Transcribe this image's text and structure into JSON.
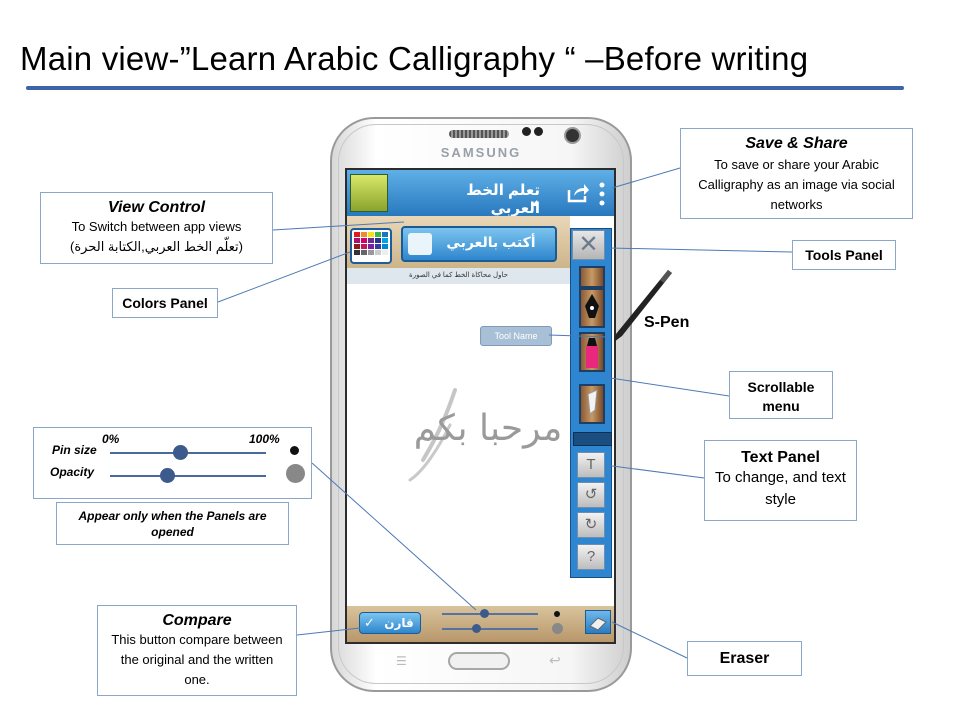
{
  "slide_title": "Main view-”Learn Arabic Calligraphy “ –Before writing",
  "phone": {
    "brand": "SAMSUNG",
    "app_title": "تعلم الخط العربي",
    "write_button": "أكتب بالعربي",
    "hint_text": "حاول محاكاة الخط كما في الصورة",
    "canvas_sample": "مرحبا بكم",
    "tool_name_label": "Tool Name",
    "compare_button": "قارن",
    "text_tool_glyph": "T",
    "undo_glyph": "↺",
    "redo_glyph": "↻",
    "help_glyph": "?"
  },
  "callouts": {
    "save_share": {
      "heading": "Save & Share",
      "body": "To  save or share your Arabic Calligraphy  as an image via social networks"
    },
    "view_control": {
      "heading": "View Control",
      "body": "To Switch between app views",
      "body2": "(تعلّم الخط العربي,الكتابة الحرة)"
    },
    "tools_panel": "Tools Panel",
    "colors_panel": "Colors Panel",
    "s_pen": "S-Pen",
    "scrollable_menu": "Scrollable menu",
    "text_panel": {
      "heading": "Text Panel",
      "body": "To change, and text style"
    },
    "sliders": {
      "min": "0%",
      "max": "100%",
      "pin_size": "Pin size",
      "opacity": "Opacity",
      "pin_size_level": 0.5,
      "opacity_level": 0.4
    },
    "appear_note": "Appear only when the Panels are opened",
    "compare": {
      "heading": "Compare",
      "body": "This button  compare between the original and the written one."
    },
    "eraser": "Eraser"
  },
  "colors": {
    "accent_line": "#3d64a6",
    "app_blue": "#2878bf",
    "callout_border": "#8aa6c8"
  }
}
